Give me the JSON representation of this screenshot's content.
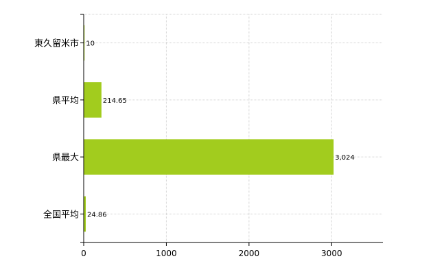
{
  "chart_data": {
    "type": "bar",
    "orientation": "horizontal",
    "title": "",
    "xlabel": "",
    "ylabel": "",
    "categories": [
      "東久留米市",
      "県平均",
      "県最大",
      "全国平均"
    ],
    "values": [
      10,
      214.65,
      3024,
      24.86
    ],
    "data_labels": [
      "10",
      "214.65",
      "3,024",
      "24.86"
    ],
    "x_ticks": [
      0,
      1000,
      2000,
      3000
    ],
    "xlim": [
      0,
      3620
    ],
    "grid": true,
    "legend": "none",
    "colors": {
      "bar": "#a2cc1e",
      "grid": "#d3d3d3",
      "axis": "#000000"
    }
  }
}
